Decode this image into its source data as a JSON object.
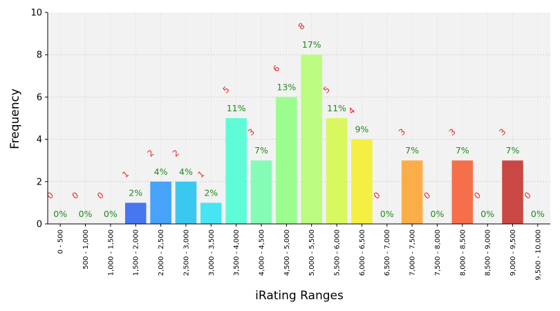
{
  "chart_data": {
    "type": "bar",
    "xlabel": "iRating Ranges",
    "ylabel": "Frequency",
    "ylim": [
      0,
      10
    ],
    "yticks": [
      0,
      2,
      4,
      6,
      8,
      10
    ],
    "grid": true,
    "categories": [
      "0 - 500",
      "500 - 1,000",
      "1,000 - 1,500",
      "1,500 - 2,000",
      "2,000 - 2,500",
      "2,500 - 3,000",
      "3,000 - 3,500",
      "3,500 - 4,000",
      "4,000 - 4,500",
      "4,500 - 5,000",
      "5,000 - 5,500",
      "5,500 - 6,000",
      "6,000 - 6,500",
      "6,500 - 7,000",
      "7,000 - 7,500",
      "7,500 - 8,000",
      "8,000 - 8,500",
      "8,500 - 9,000",
      "9,000 - 9,500",
      "9,500 - 10,000"
    ],
    "values": [
      0,
      0,
      0,
      1,
      2,
      2,
      1,
      5,
      3,
      6,
      8,
      5,
      4,
      0,
      3,
      0,
      3,
      0,
      3,
      0
    ],
    "percent_labels": [
      "0%",
      "0%",
      "0%",
      "2%",
      "4%",
      "4%",
      "2%",
      "11%",
      "7%",
      "13%",
      "17%",
      "11%",
      "9%",
      "0%",
      "7%",
      "0%",
      "7%",
      "0%",
      "7%",
      "0%"
    ],
    "colors": [
      "#30123b",
      "#3b2f80",
      "#4456c7",
      "#4777ef",
      "#47a2f9",
      "#3ac8f0",
      "#47e5f4",
      "#5ffbd6",
      "#85fcb6",
      "#9cfd8f",
      "#bcfc80",
      "#d9f85f",
      "#f3f043",
      "#fcc73c",
      "#fbae48",
      "#f98d48",
      "#f56f4a",
      "#e65a3d",
      "#c94844",
      "#a32d2a"
    ]
  }
}
